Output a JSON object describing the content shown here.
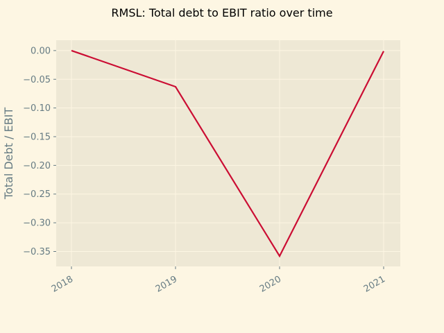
{
  "chart_data": {
    "type": "line",
    "title": "RMSL: Total debt to EBIT ratio over time",
    "xlabel": "",
    "ylabel": "Total Debt / EBIT",
    "categories": [
      "2018",
      "2019",
      "2020",
      "2021"
    ],
    "series": [
      {
        "values": [
          0.0,
          -0.063,
          -0.358,
          -0.001
        ]
      }
    ],
    "yticks": [
      0.0,
      -0.05,
      -0.1,
      -0.15,
      -0.2,
      -0.25,
      -0.3,
      -0.35
    ],
    "ytick_labels": [
      "0.00",
      "−0.05",
      "−0.10",
      "−0.15",
      "−0.20",
      "−0.25",
      "−0.30",
      "−0.35"
    ],
    "ylim": [
      -0.376,
      0.018
    ],
    "grid": true,
    "colors": {
      "background": "#fdf6e3",
      "plot_background": "#eee8d5",
      "grid": "#fdf6e3",
      "line": "#cb0d33",
      "tick_text": "#657b83",
      "title_text": "#000000"
    }
  }
}
